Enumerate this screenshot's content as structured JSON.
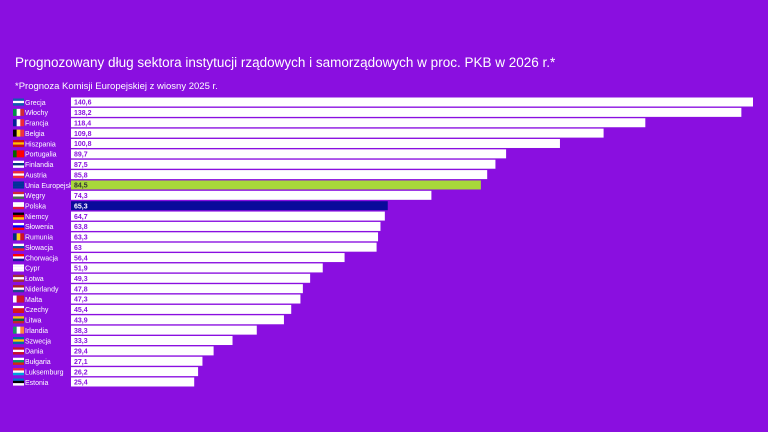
{
  "title": "Prognozowany dług sektora instytucji rządowych i samorządowych w proc. PKB w 2026 r.*",
  "subtitle": "*Prognoza Komisji Europejskiej z wiosny 2025 r.",
  "colors": {
    "background": "#8a0fe0",
    "bar": "#ffffff",
    "highlight_eu": "#a8d83a",
    "highlight_pl": "#0a0a9a",
    "label_text": "#8a0fe0"
  },
  "chart_data": {
    "type": "bar",
    "orientation": "horizontal",
    "title": "Prognozowany dług sektora instytucji rządowych i samorządowych w proc. PKB w 2026 r.*",
    "xlim": [
      0,
      145
    ],
    "categories": [
      "Grecja",
      "Włochy",
      "Francja",
      "Belgia",
      "Hiszpania",
      "Portugalia",
      "Finlandia",
      "Austria",
      "Unia Europejska",
      "Węgry",
      "Polska",
      "Niemcy",
      "Słowenia",
      "Rumunia",
      "Słowacja",
      "Chorwacja",
      "Cypr",
      "Łotwa",
      "Niderlandy",
      "Malta",
      "Czechy",
      "Litwa",
      "Irlandia",
      "Szwecja",
      "Dania",
      "Bułgaria",
      "Luksemburg",
      "Estonia"
    ],
    "values": [
      140.6,
      138.2,
      118.4,
      109.8,
      100.8,
      89.7,
      87.5,
      85.8,
      84.5,
      74.3,
      65.3,
      64.7,
      63.8,
      63.3,
      63,
      56.4,
      51.9,
      49.3,
      47.8,
      47.3,
      45.4,
      43.9,
      38.3,
      33.3,
      29.4,
      27.1,
      26.2,
      25.4
    ],
    "value_labels": [
      "140,6",
      "138,2",
      "118,4",
      "109,8",
      "100,8",
      "89,7",
      "87,5",
      "85,8",
      "84,5",
      "74,3",
      "65,3",
      "64,7",
      "63,8",
      "63,3",
      "63",
      "56,4",
      "51,9",
      "49,3",
      "47,8",
      "47,3",
      "45,4",
      "43,9",
      "38,3",
      "33,3",
      "29,4",
      "27,1",
      "26,2",
      "25,4"
    ],
    "highlights": {
      "Unia Europejska": "#a8d83a",
      "Polska": "#0a0a9a"
    }
  }
}
